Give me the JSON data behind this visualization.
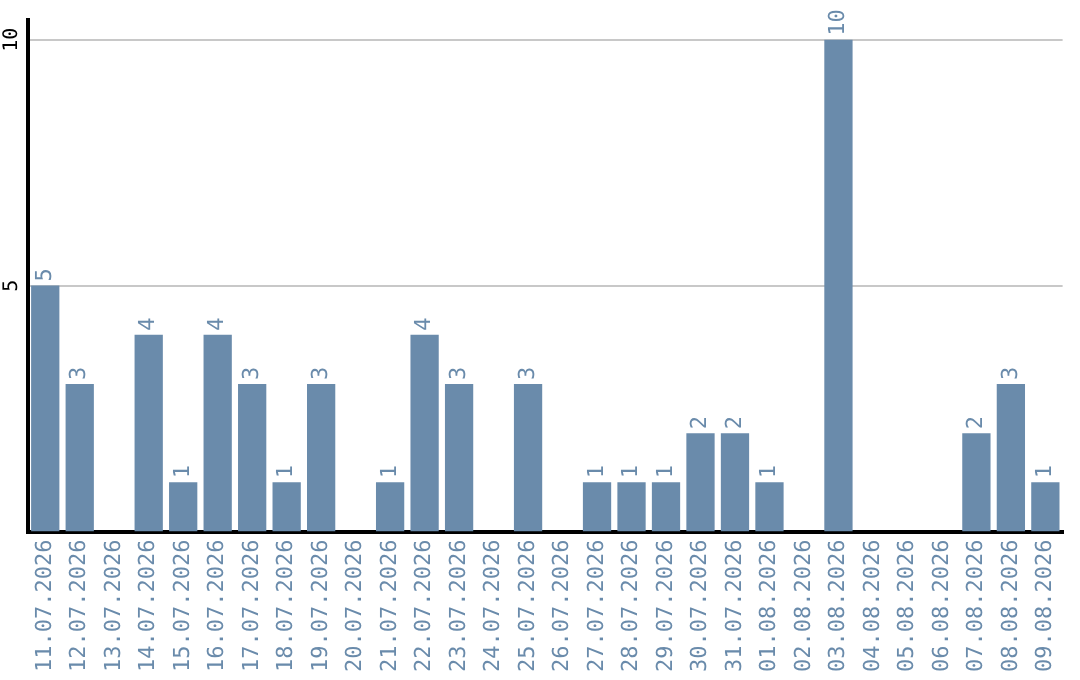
{
  "chart_data": {
    "type": "bar",
    "categories": [
      "11.07.2026",
      "12.07.2026",
      "13.07.2026",
      "14.07.2026",
      "15.07.2026",
      "16.07.2026",
      "17.07.2026",
      "18.07.2026",
      "19.07.2026",
      "20.07.2026",
      "21.07.2026",
      "22.07.2026",
      "23.07.2026",
      "24.07.2026",
      "25.07.2026",
      "26.07.2026",
      "27.07.2026",
      "28.07.2026",
      "29.07.2026",
      "30.07.2026",
      "31.07.2026",
      "01.08.2026",
      "02.08.2026",
      "03.08.2026",
      "04.08.2026",
      "05.08.2026",
      "06.08.2026",
      "07.08.2026",
      "08.08.2026",
      "09.08.2026"
    ],
    "values": [
      5,
      3,
      0,
      4,
      1,
      4,
      3,
      1,
      3,
      0,
      1,
      4,
      3,
      0,
      3,
      0,
      1,
      1,
      1,
      2,
      2,
      1,
      0,
      10,
      0,
      0,
      0,
      2,
      3,
      1
    ],
    "value_labels": [
      "5",
      "3",
      null,
      "4",
      "1",
      "4",
      "3",
      "1",
      "3",
      null,
      "1",
      "4",
      "3",
      null,
      "3",
      null,
      "1",
      "1",
      "1",
      "2",
      "2",
      "1",
      null,
      "10",
      null,
      null,
      null,
      "2",
      "3",
      "1"
    ],
    "color": "#6a8bab",
    "ylim": [
      0,
      10.4
    ],
    "yticks": [
      5,
      10
    ],
    "grid": "y",
    "legend": false
  }
}
